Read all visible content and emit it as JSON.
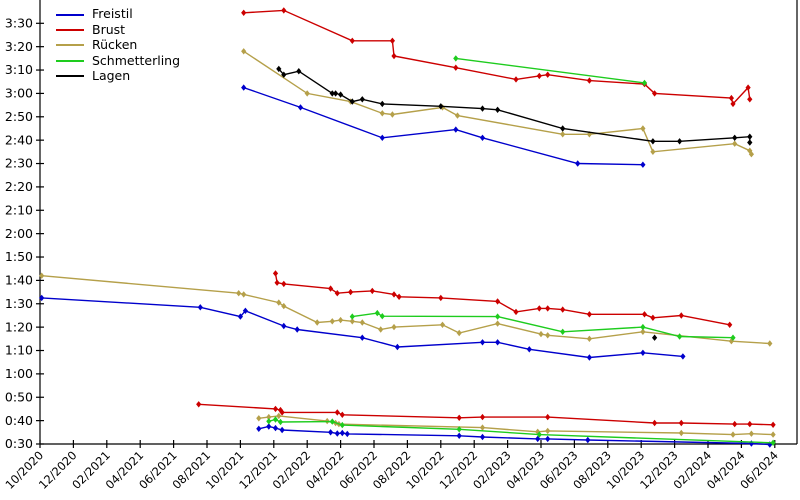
{
  "chart_data": {
    "type": "line",
    "title": "",
    "background": "#ffffff",
    "axis_color": "#000000",
    "grid": false,
    "legend_position": "upper-left",
    "marker": "diamond",
    "x_axis": {
      "unit": "month (ticks every 2 months)",
      "tick_labels": [
        "10/2020",
        "12/2020",
        "02/2021",
        "04/2021",
        "06/2021",
        "08/2021",
        "10/2021",
        "12/2021",
        "02/2022",
        "04/2022",
        "06/2022",
        "08/2022",
        "10/2022",
        "12/2022",
        "02/2023",
        "04/2023",
        "06/2023",
        "08/2023",
        "10/2023",
        "12/2023",
        "02/2024",
        "04/2024",
        "06/2024"
      ]
    },
    "y_axis": {
      "unit": "time m:ss (stored as seconds)",
      "min_seconds": 30,
      "max_seconds": 210,
      "step_seconds": 10,
      "tick_labels": [
        "0:30",
        "0:40",
        "0:50",
        "1:00",
        "1:10",
        "1:20",
        "1:30",
        "1:40",
        "1:50",
        "2:00",
        "2:10",
        "2:20",
        "2:30",
        "2:40",
        "2:50",
        "3:00",
        "3:10",
        "3:20",
        "3:30"
      ]
    },
    "series_note": "points are [months_since_10/2020, seconds]; each stroke has up to 3 segments (long/middle/short distance bands)",
    "series": [
      {
        "id": "freistil",
        "label": "Freistil",
        "color": "#0000cc",
        "segments": [
          [
            [
              12.2,
              182.5
            ],
            [
              15.6,
              174
            ],
            [
              20.5,
              161
            ],
            [
              24.9,
              164.5
            ],
            [
              26.5,
              161
            ],
            [
              32.2,
              150
            ],
            [
              36.1,
              149.5
            ]
          ],
          [
            [
              0.1,
              92.5
            ],
            [
              9.6,
              88.5
            ],
            [
              12.0,
              84.5
            ],
            [
              12.3,
              87
            ],
            [
              14.6,
              80.5
            ],
            [
              15.4,
              79
            ],
            [
              19.3,
              75.5
            ],
            [
              21.4,
              71.5
            ],
            [
              26.5,
              73.5
            ],
            [
              27.4,
              73.5
            ],
            [
              29.3,
              70.5
            ],
            [
              32.9,
              67
            ],
            [
              36.1,
              69
            ],
            [
              38.5,
              67.5
            ]
          ],
          [
            [
              13.1,
              36.5
            ],
            [
              13.7,
              37.5
            ],
            [
              14.1,
              36.8
            ],
            [
              14.5,
              36
            ],
            [
              17.4,
              35
            ],
            [
              17.8,
              34.5
            ],
            [
              18.1,
              34.7
            ],
            [
              18.4,
              34.3
            ],
            [
              25.1,
              33.5
            ],
            [
              26.5,
              33
            ],
            [
              29.8,
              32.2
            ],
            [
              30.4,
              32.2
            ],
            [
              32.8,
              31.7
            ],
            [
              42.6,
              30.2
            ],
            [
              43.7,
              29.8
            ]
          ]
        ]
      },
      {
        "id": "brust",
        "label": "Brust",
        "color": "#cc0000",
        "segments": [
          [
            [
              12.2,
              214.5
            ],
            [
              14.6,
              215.5
            ],
            [
              18.7,
              202.5
            ],
            [
              21.1,
              202.5
            ],
            [
              21.2,
              196
            ],
            [
              24.9,
              191
            ],
            [
              28.5,
              186
            ],
            [
              29.9,
              187.5
            ],
            [
              30.4,
              188
            ],
            [
              32.9,
              185.5
            ],
            [
              36.2,
              184
            ],
            [
              36.8,
              180
            ],
            [
              41.4,
              178
            ],
            [
              41.5,
              175.5
            ],
            [
              42.4,
              182.5
            ],
            [
              42.5,
              177.5
            ]
          ],
          [
            [
              14.1,
              103
            ],
            [
              14.2,
              99
            ],
            [
              14.6,
              98.5
            ],
            [
              17.4,
              96.5
            ],
            [
              17.8,
              94.5
            ],
            [
              18.6,
              95
            ],
            [
              19.9,
              95.5
            ],
            [
              21.2,
              94
            ],
            [
              21.5,
              93
            ],
            [
              24.0,
              92.5
            ],
            [
              27.4,
              91
            ],
            [
              28.5,
              86.5
            ],
            [
              29.9,
              88
            ],
            [
              30.4,
              88
            ],
            [
              31.3,
              87.5
            ],
            [
              32.9,
              85.5
            ],
            [
              36.2,
              85.5
            ],
            [
              36.7,
              84
            ],
            [
              38.4,
              85
            ],
            [
              41.3,
              81
            ]
          ],
          [
            [
              9.5,
              47
            ],
            [
              14.1,
              45
            ],
            [
              14.4,
              44.5
            ],
            [
              14.5,
              43.5
            ],
            [
              17.8,
              43.5
            ],
            [
              18.1,
              42.5
            ],
            [
              25.1,
              41.2
            ],
            [
              26.5,
              41.5
            ],
            [
              30.4,
              41.5
            ],
            [
              36.8,
              39
            ],
            [
              38.4,
              39
            ],
            [
              41.6,
              38.5
            ],
            [
              42.5,
              38.5
            ],
            [
              43.9,
              38.2
            ]
          ]
        ]
      },
      {
        "id": "ruecken",
        "label": "Rücken",
        "color": "#b5a04a",
        "segments": [
          [
            [
              12.2,
              198
            ],
            [
              16.0,
              180
            ],
            [
              18.6,
              176.5
            ],
            [
              20.5,
              171.5
            ],
            [
              21.1,
              171
            ],
            [
              24.1,
              174
            ],
            [
              25.0,
              170.5
            ],
            [
              31.3,
              162.5
            ],
            [
              32.9,
              162.5
            ],
            [
              36.1,
              165
            ],
            [
              36.7,
              155
            ],
            [
              41.6,
              158.5
            ],
            [
              42.5,
              155.5
            ],
            [
              42.6,
              154
            ]
          ],
          [
            [
              0.1,
              102
            ],
            [
              11.9,
              94.5
            ],
            [
              12.2,
              94
            ],
            [
              14.3,
              90.5
            ],
            [
              14.6,
              89
            ],
            [
              16.6,
              82
            ],
            [
              17.5,
              82.5
            ],
            [
              18.0,
              83
            ],
            [
              18.7,
              82.5
            ],
            [
              19.3,
              82
            ],
            [
              20.4,
              79
            ],
            [
              21.2,
              80
            ],
            [
              24.1,
              81
            ],
            [
              25.1,
              77.5
            ],
            [
              27.4,
              81.5
            ],
            [
              30.0,
              77
            ],
            [
              30.4,
              76.5
            ],
            [
              32.9,
              75
            ],
            [
              36.1,
              78
            ],
            [
              41.4,
              74
            ],
            [
              43.7,
              73
            ]
          ],
          [
            [
              13.1,
              41
            ],
            [
              13.7,
              41.5
            ],
            [
              14.3,
              42
            ],
            [
              17.2,
              39.8
            ],
            [
              17.7,
              39
            ],
            [
              17.9,
              38.5
            ],
            [
              26.5,
              37
            ],
            [
              29.8,
              35.2
            ],
            [
              30.4,
              35.6
            ],
            [
              38.4,
              34.7
            ],
            [
              41.5,
              34
            ],
            [
              42.6,
              34.4
            ],
            [
              43.9,
              34
            ]
          ]
        ]
      },
      {
        "id": "schmetterling",
        "label": "Schmetterling",
        "color": "#1ecc1e",
        "segments": [
          [
            [
              24.9,
              195
            ],
            [
              36.2,
              184.5
            ]
          ],
          [
            [
              18.7,
              84.5
            ],
            [
              20.2,
              86
            ],
            [
              20.5,
              84.7
            ],
            [
              27.4,
              84.5
            ],
            [
              31.3,
              78
            ],
            [
              36.1,
              80
            ],
            [
              38.3,
              76
            ],
            [
              41.5,
              75.5
            ]
          ],
          [
            [
              13.7,
              39.7
            ],
            [
              14.1,
              40.5
            ],
            [
              14.4,
              39.4
            ],
            [
              17.5,
              39.6
            ],
            [
              18.1,
              38.1
            ],
            [
              25.1,
              36.3
            ],
            [
              29.9,
              34
            ],
            [
              43.9,
              30.5
            ]
          ]
        ]
      },
      {
        "id": "lagen",
        "label": "Lagen",
        "color": "#000000",
        "segments": [
          [
            [
              14.3,
              190.5
            ],
            [
              14.6,
              188
            ],
            [
              15.5,
              189.5
            ],
            [
              17.5,
              180
            ],
            [
              17.7,
              180
            ],
            [
              18.0,
              179.5
            ],
            [
              18.7,
              176.5
            ],
            [
              19.3,
              177.5
            ],
            [
              20.5,
              175.5
            ],
            [
              24.0,
              174.5
            ],
            [
              26.5,
              173.5
            ],
            [
              27.4,
              173
            ],
            [
              31.3,
              165
            ],
            [
              36.7,
              159.5
            ],
            [
              38.3,
              159.5
            ],
            [
              41.6,
              161
            ],
            [
              42.5,
              161.5
            ],
            [
              42.5,
              159
            ]
          ],
          [
            [
              36.8,
              75.5
            ]
          ]
        ]
      }
    ]
  }
}
